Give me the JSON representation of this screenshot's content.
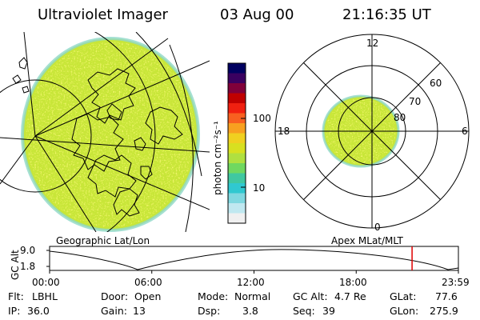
{
  "header": {
    "instrument": "Ultraviolet Imager",
    "date": "03 Aug 00",
    "time": "21:16:35 UT"
  },
  "colorbar": {
    "unit_label": "photon cm⁻²s⁻¹",
    "ticks": [
      {
        "label": "100",
        "value": 100
      },
      {
        "label": "10",
        "value": 10
      }
    ],
    "colors": [
      "#000060",
      "#3a0060",
      "#80003a",
      "#c00000",
      "#f02010",
      "#f86020",
      "#f8a020",
      "#f0d020",
      "#d8e020",
      "#b0e040",
      "#70d860",
      "#40c8a0",
      "#30c8d0",
      "#80d8e0",
      "#c0e8f0",
      "#f0f0f0"
    ]
  },
  "panels": {
    "left_caption": "Geographic Lat/Lon",
    "right_caption": "Apex MLat/MLT"
  },
  "polar": {
    "mlt_labels": {
      "top": "12",
      "left": "18",
      "right": "6",
      "bottom": "0"
    },
    "lat_labels": [
      "60",
      "70",
      "80"
    ]
  },
  "altitude_plot": {
    "ylabel": "GC Alt",
    "y_ticks": [
      "9.0",
      "1.8"
    ],
    "x_ticks": [
      "00:00",
      "06:00",
      "12:00",
      "18:00",
      "23:59"
    ],
    "current_time_hours": 21.28
  },
  "info": {
    "filter_key": "Flt:",
    "filter_val": "LBHL",
    "ip_key": "IP:",
    "ip_val": "36.0",
    "door_key": "Door:",
    "door_val": "Open",
    "gain_key": "Gain:",
    "gain_val": "13",
    "mode_key": "Mode:",
    "mode_val": "Normal",
    "dsp_key": "Dsp:",
    "dsp_val": "3.8",
    "alt_key": "GC Alt:",
    "alt_val": "4.7 Re",
    "seq_key": "Seq:",
    "seq_val": "39",
    "glat_key": "GLat:",
    "glat_val": "77.6",
    "glon_key": "GLon:",
    "glon_val": "275.9"
  }
}
